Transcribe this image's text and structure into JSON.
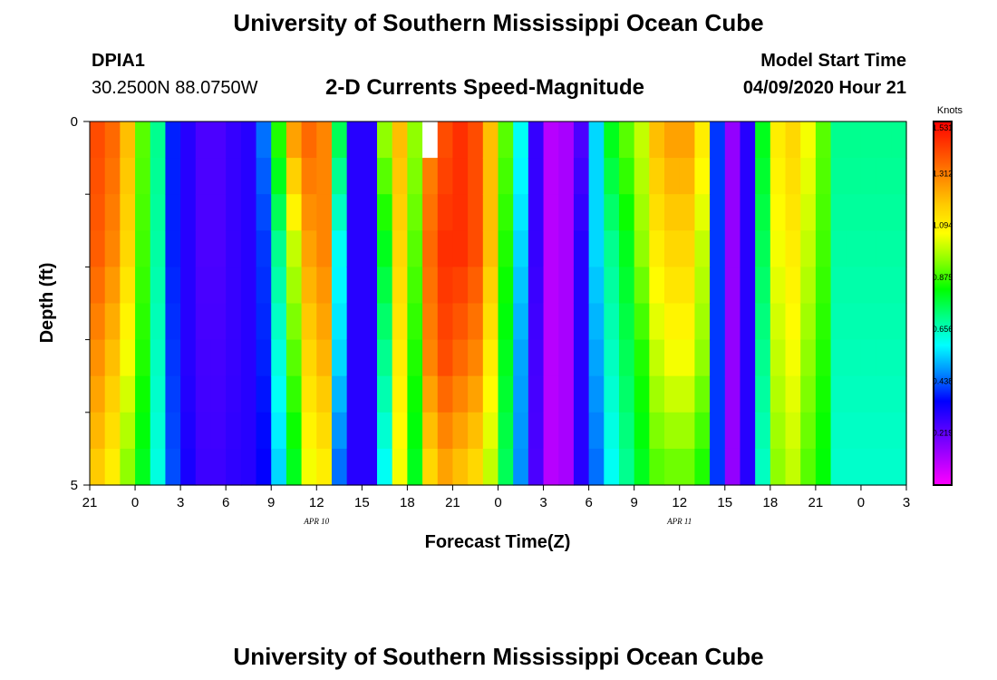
{
  "header": {
    "title": "University of Southern Mississippi Ocean Cube",
    "station_id": "DPIA1",
    "coordinates": "30.2500N 88.0750W",
    "subtitle": "2-D Currents Speed-Magnitude",
    "model_start_label": "Model Start Time",
    "model_start_value": "04/09/2020 Hour 21"
  },
  "footer": {
    "title": "University of Southern Mississippi Ocean Cube"
  },
  "chart_data": {
    "type": "heatmap",
    "title": "2-D Currents Speed-Magnitude",
    "xlabel": "Forecast Time(Z)",
    "ylabel": "Depth (ft)",
    "x_range_hours": [
      0,
      54
    ],
    "x_ticks": [
      {
        "h": 0,
        "label": "21"
      },
      {
        "h": 3,
        "label": "0"
      },
      {
        "h": 6,
        "label": "3"
      },
      {
        "h": 9,
        "label": "6"
      },
      {
        "h": 12,
        "label": "9"
      },
      {
        "h": 15,
        "label": "12"
      },
      {
        "h": 18,
        "label": "15"
      },
      {
        "h": 21,
        "label": "18"
      },
      {
        "h": 24,
        "label": "21"
      },
      {
        "h": 27,
        "label": "0"
      },
      {
        "h": 30,
        "label": "3"
      },
      {
        "h": 33,
        "label": "6"
      },
      {
        "h": 36,
        "label": "9"
      },
      {
        "h": 39,
        "label": "12"
      },
      {
        "h": 42,
        "label": "15"
      },
      {
        "h": 45,
        "label": "18"
      },
      {
        "h": 48,
        "label": "21"
      },
      {
        "h": 51,
        "label": "0"
      },
      {
        "h": 54,
        "label": "3"
      }
    ],
    "date_labels": [
      {
        "h": 15,
        "label": "APR 10"
      },
      {
        "h": 39,
        "label": "APR 11"
      }
    ],
    "y_range": [
      0,
      5
    ],
    "y_ticks": [
      {
        "v": 0,
        "label": "0"
      },
      {
        "v": 5,
        "label": "5"
      }
    ],
    "y_minor_ticks": [
      1,
      2,
      3,
      4
    ],
    "depth_levels": 10,
    "colorbar": {
      "title": "Knots",
      "min": 0.0,
      "max": 1.531,
      "ticks": [
        "1.531",
        "1.312",
        "1.094",
        "0.875",
        "0.656",
        "0.438",
        "0.219"
      ],
      "stops": [
        "#ff00ff",
        "#aa00ff",
        "#5500ff",
        "#0000ff",
        "#0088ff",
        "#00ffff",
        "#00ff88",
        "#00ff00",
        "#88ff00",
        "#ffff00",
        "#ffcc00",
        "#ff8800",
        "#ff4400",
        "#ff0000"
      ]
    },
    "missing_cell": {
      "h": 22,
      "levels": [
        0
      ]
    },
    "columns_hourly": [
      [
        1.4,
        1.37,
        1.28,
        1.18
      ],
      [
        1.35,
        1.3,
        1.2,
        1.1
      ],
      [
        1.2,
        1.15,
        1.05,
        0.95
      ],
      [
        0.9,
        0.88,
        0.85,
        0.8
      ],
      [
        0.7,
        0.68,
        0.65,
        0.62
      ],
      [
        0.38,
        0.38,
        0.4,
        0.42
      ],
      [
        0.3,
        0.3,
        0.3,
        0.32
      ],
      [
        0.25,
        0.25,
        0.26,
        0.27
      ],
      [
        0.25,
        0.25,
        0.26,
        0.27
      ],
      [
        0.28,
        0.28,
        0.28,
        0.29
      ],
      [
        0.3,
        0.3,
        0.3,
        0.3
      ],
      [
        0.45,
        0.4,
        0.38,
        0.35
      ],
      [
        0.85,
        0.7,
        0.62,
        0.55
      ],
      [
        1.25,
        1.0,
        0.9,
        0.8
      ],
      [
        1.35,
        1.25,
        1.15,
        1.05
      ],
      [
        1.3,
        1.3,
        1.22,
        1.1
      ],
      [
        0.75,
        0.6,
        0.55,
        0.45
      ],
      [
        0.3,
        0.3,
        0.3,
        0.3
      ],
      [
        0.3,
        0.3,
        0.3,
        0.3
      ],
      [
        0.95,
        0.8,
        0.7,
        0.6
      ],
      [
        1.2,
        1.15,
        1.1,
        1.05
      ],
      [
        0.95,
        0.9,
        0.85,
        0.8
      ],
      [
        1.3,
        1.35,
        1.3,
        1.15
      ],
      [
        1.4,
        1.45,
        1.4,
        1.25
      ],
      [
        1.45,
        1.45,
        1.35,
        1.2
      ],
      [
        1.4,
        1.4,
        1.3,
        1.15
      ],
      [
        1.2,
        1.2,
        1.1,
        1.0
      ],
      [
        0.9,
        0.85,
        0.8,
        0.75
      ],
      [
        0.6,
        0.55,
        0.5,
        0.48
      ],
      [
        0.28,
        0.28,
        0.26,
        0.25
      ],
      [
        0.1,
        0.1,
        0.1,
        0.1
      ],
      [
        0.12,
        0.12,
        0.12,
        0.12
      ],
      [
        0.25,
        0.3,
        0.3,
        0.3
      ],
      [
        0.55,
        0.55,
        0.5,
        0.45
      ],
      [
        0.8,
        0.7,
        0.65,
        0.6
      ],
      [
        0.9,
        0.8,
        0.75,
        0.7
      ],
      [
        1.0,
        0.95,
        0.85,
        0.8
      ],
      [
        1.2,
        1.1,
        1.0,
        0.9
      ],
      [
        1.25,
        1.15,
        1.05,
        0.92
      ],
      [
        1.25,
        1.15,
        1.05,
        0.92
      ],
      [
        1.1,
        1.0,
        0.95,
        0.85
      ],
      [
        0.4,
        0.4,
        0.4,
        0.4
      ],
      [
        0.15,
        0.15,
        0.15,
        0.15
      ],
      [
        0.3,
        0.3,
        0.3,
        0.3
      ],
      [
        0.8,
        0.75,
        0.7,
        0.65
      ],
      [
        1.1,
        1.05,
        1.0,
        0.95
      ],
      [
        1.15,
        1.1,
        1.05,
        1.0
      ],
      [
        1.05,
        1.0,
        0.95,
        0.9
      ],
      [
        0.9,
        0.88,
        0.85,
        0.82
      ],
      [
        0.7,
        0.68,
        0.66,
        0.64
      ]
    ]
  }
}
